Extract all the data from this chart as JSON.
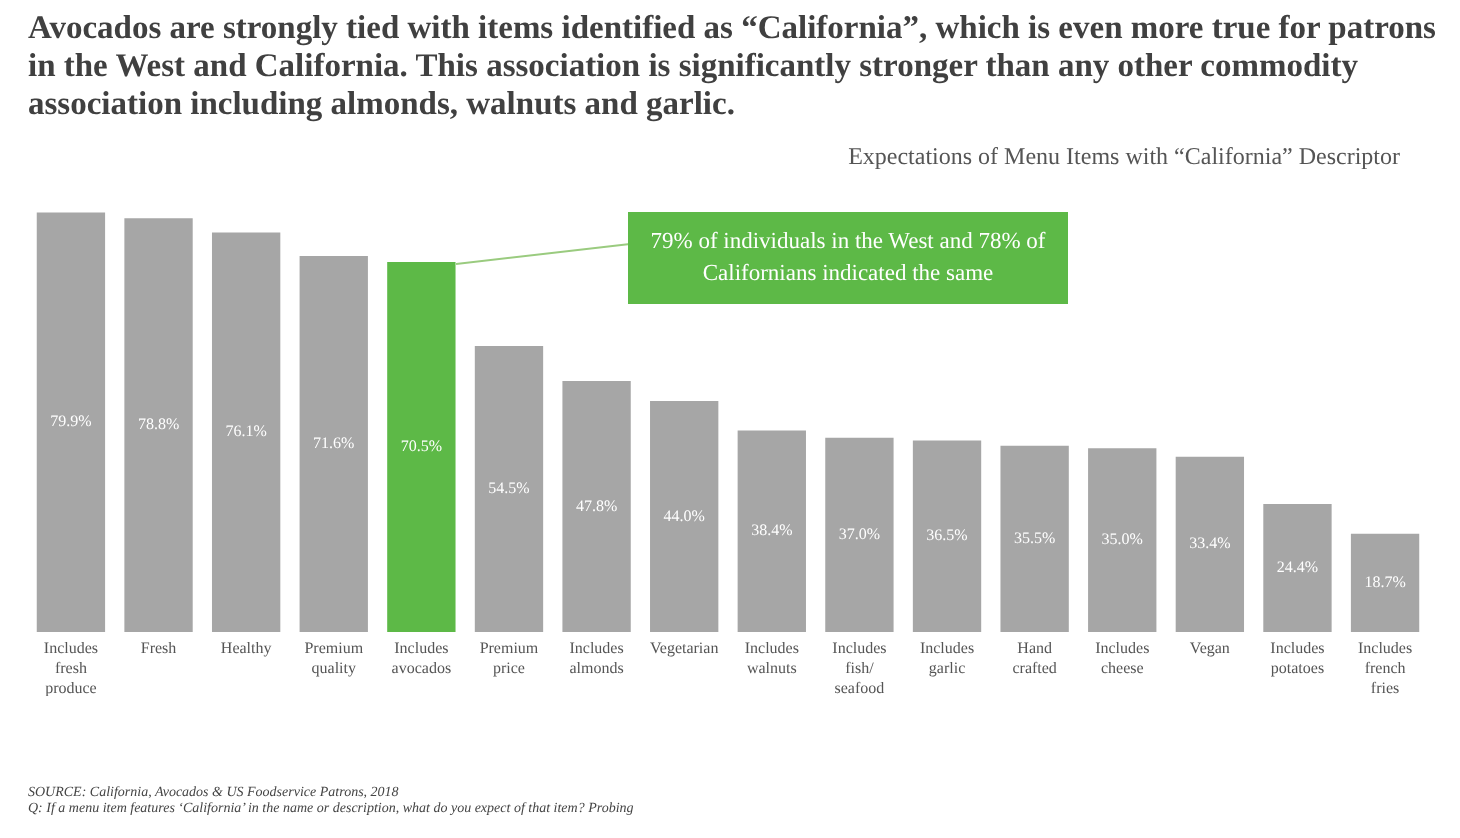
{
  "chart_data": {
    "type": "bar",
    "title": "Avocados are strongly tied with items identified as “California”, which is even more true for patrons in the West and California. This association is significantly stronger than any other commodity association including almonds, walnuts and garlic.",
    "subtitle": "Expectations of Menu Items with “California” Descriptor",
    "categories": [
      "Includes fresh produce",
      "Fresh",
      "Healthy",
      "Premium quality",
      "Includes avocados",
      "Premium price",
      "Includes almonds",
      "Vegetarian",
      "Includes walnuts",
      "Includes fish/ seafood",
      "Includes garlic",
      "Hand crafted",
      "Includes cheese",
      "Vegan",
      "Includes potatoes",
      "Includes french fries"
    ],
    "values": [
      79.9,
      78.8,
      76.1,
      71.6,
      70.5,
      54.5,
      47.8,
      44.0,
      38.4,
      37.0,
      36.5,
      35.5,
      35.0,
      33.4,
      24.4,
      18.7
    ],
    "value_labels": [
      "79.9%",
      "78.8%",
      "76.1%",
      "71.6%",
      "70.5%",
      "54.5%",
      "47.8%",
      "44.0%",
      "38.4%",
      "37.0%",
      "36.5%",
      "35.5%",
      "35.0%",
      "33.4%",
      "24.4%",
      "18.7%"
    ],
    "colors": [
      "#a6a6a6",
      "#a6a6a6",
      "#a6a6a6",
      "#a6a6a6",
      "#5db947",
      "#a6a6a6",
      "#a6a6a6",
      "#a6a6a6",
      "#a6a6a6",
      "#a6a6a6",
      "#a6a6a6",
      "#a6a6a6",
      "#a6a6a6",
      "#a6a6a6",
      "#a6a6a6",
      "#a6a6a6"
    ],
    "annotations": [
      "79% of individuals in the West and 78% of Californians indicated the same",
      "SOURCE: California, Avocados & US Foodservice Patrons, 2018",
      "Q: If a menu item features ‘California’ in the name or description, what do you expect of that item? Probing"
    ],
    "grid": false
  }
}
